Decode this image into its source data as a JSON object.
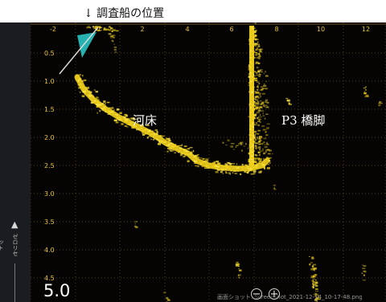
{
  "caption": "↓ 調査船の位置",
  "labels": {
    "riverbed": "河床",
    "pier": "P3 橋脚"
  },
  "range_display": "5.0",
  "status_text": "画面ショット: Screenshot_2021-12-14_10-17-48.png",
  "zoom": {
    "out_symbol": "−",
    "in_symbol": "+"
  },
  "sidebar": {
    "arrow_symbol": "▲",
    "label": "ゼロリセット"
  },
  "x_axis_ticks": [
    "-2",
    "0",
    "2",
    "4",
    "6",
    "8",
    "10",
    "12"
  ],
  "y_axis_ticks": [
    "0.5",
    "1.0",
    "1.5",
    "2.0",
    "2.5",
    "3.0",
    "3.5",
    "4.0",
    "4.5"
  ],
  "colors": {
    "echo": "#f2d21c",
    "echo_bright": "#ffe84a",
    "transducer": "#2fd0d0",
    "grid": "#6b5a22",
    "tick": "#e9c33a",
    "background": "#050402"
  }
}
